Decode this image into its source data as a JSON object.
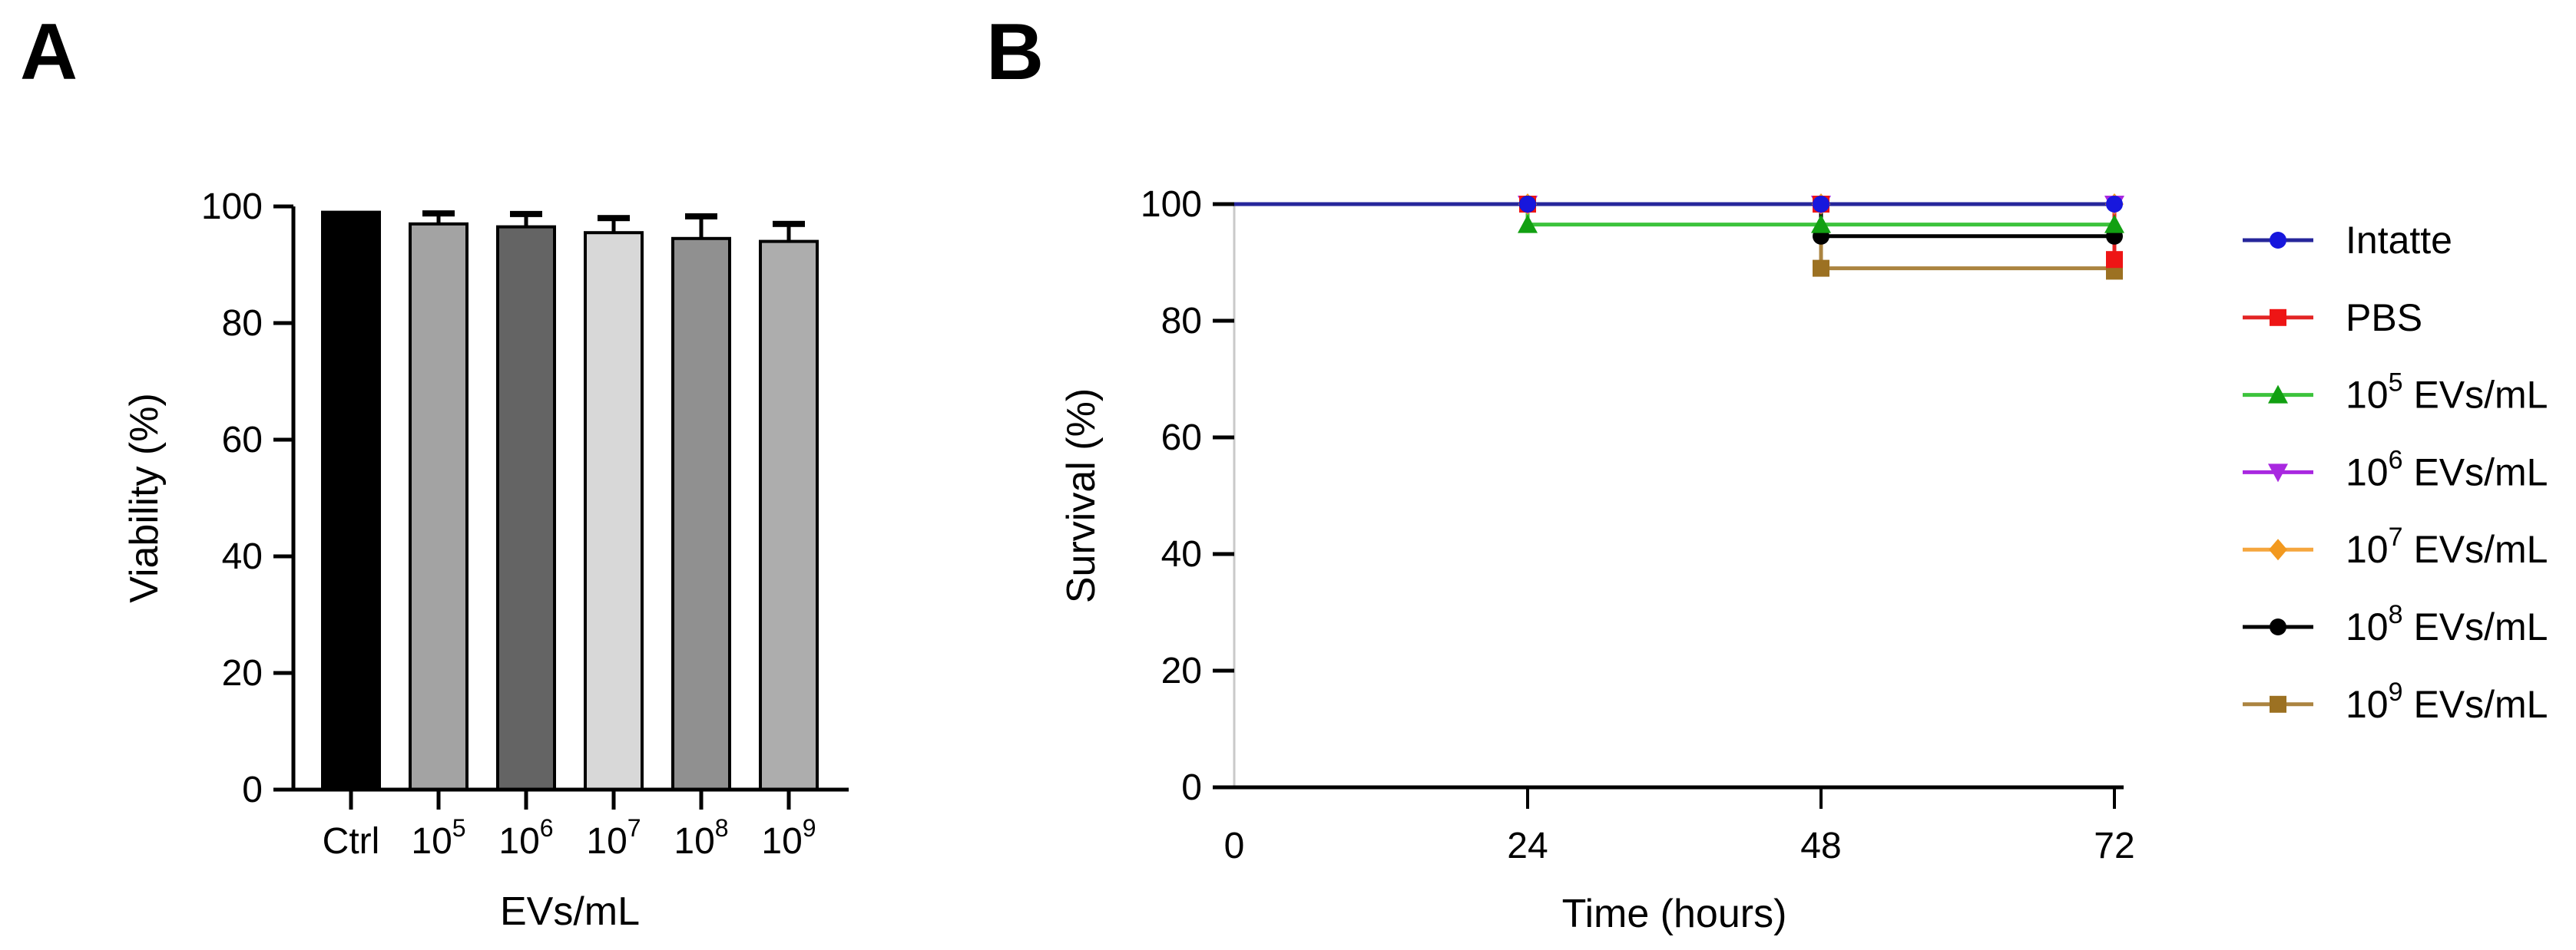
{
  "figure": {
    "panel_a_letter": "A",
    "panel_b_letter": "B"
  },
  "chart_data": [
    {
      "panel": "A",
      "type": "bar",
      "title": "",
      "ylabel": "Viability (%)",
      "xlabel": "EVs/mL",
      "ylim": [
        0,
        100
      ],
      "yticks": [
        0,
        20,
        40,
        60,
        80,
        100
      ],
      "grid": false,
      "categories": [
        "Ctrl",
        "10^5",
        "10^6",
        "10^7",
        "10^8",
        "10^9"
      ],
      "category_labels": [
        [
          {
            "t": "Ctrl"
          }
        ],
        [
          {
            "t": "10"
          },
          {
            "t": "5",
            "sup": true
          }
        ],
        [
          {
            "t": "10"
          },
          {
            "t": "6",
            "sup": true
          }
        ],
        [
          {
            "t": "10"
          },
          {
            "t": "7",
            "sup": true
          }
        ],
        [
          {
            "t": "10"
          },
          {
            "t": "8",
            "sup": true
          }
        ],
        [
          {
            "t": "10"
          },
          {
            "t": "9",
            "sup": true
          }
        ]
      ],
      "values": [
        99,
        97,
        96.5,
        95.5,
        94.5,
        94
      ],
      "errors_plus": [
        0,
        1.8,
        2.2,
        2.5,
        3.8,
        3
      ],
      "bar_colors": [
        "#000000",
        "#a3a3a3",
        "#646464",
        "#d8d8d8",
        "#909090",
        "#adadad"
      ],
      "bar_outline_color": "#000000",
      "error_bar_color": "#000000"
    },
    {
      "panel": "B",
      "type": "line",
      "subtype": "survival-step",
      "title": "",
      "ylabel": "Survival (%)",
      "xlabel": "Time (hours)",
      "ylim": [
        0,
        100
      ],
      "xlim": [
        0,
        72
      ],
      "yticks": [
        0,
        20,
        40,
        60,
        80,
        100
      ],
      "xticks": [
        0,
        24,
        48,
        72
      ],
      "grid": false,
      "legend_position": "right",
      "series": [
        {
          "name": "Intatte",
          "label_segments": [
            {
              "t": "Intatte"
            }
          ],
          "marker": "circle",
          "marker_color": "#1717dd",
          "line_color": "#26269b",
          "x": [
            0,
            24,
            48,
            72
          ],
          "y": [
            100,
            100,
            100,
            100
          ]
        },
        {
          "name": "PBS",
          "label_segments": [
            {
              "t": "PBS"
            }
          ],
          "marker": "square",
          "marker_color": "#ee1515",
          "line_color": "#e32424",
          "x": [
            0,
            24,
            48,
            72
          ],
          "y": [
            100,
            100,
            100,
            90.5
          ]
        },
        {
          "name": "10^5 EVs/mL",
          "label_segments": [
            {
              "t": "10"
            },
            {
              "t": "5",
              "sup": true
            },
            {
              "t": " EVs/mL"
            }
          ],
          "marker": "triangle-up",
          "marker_color": "#12a012",
          "line_color": "#3cc33c",
          "x": [
            0,
            24,
            48,
            72
          ],
          "y": [
            100,
            96.5,
            96.5,
            96.5
          ]
        },
        {
          "name": "10^6 EVs/mL",
          "label_segments": [
            {
              "t": "10"
            },
            {
              "t": "6",
              "sup": true
            },
            {
              "t": " EVs/mL"
            }
          ],
          "marker": "triangle-down",
          "marker_color": "#a928e0",
          "line_color": "#a928e0",
          "x": [
            0,
            24,
            48,
            72
          ],
          "y": [
            100,
            100,
            100,
            100
          ]
        },
        {
          "name": "10^7 EVs/mL",
          "label_segments": [
            {
              "t": "10"
            },
            {
              "t": "7",
              "sup": true
            },
            {
              "t": " EVs/mL"
            }
          ],
          "marker": "diamond",
          "marker_color": "#f2991f",
          "line_color": "#f5a63e",
          "x": [
            0,
            24,
            48,
            72
          ],
          "y": [
            100,
            100,
            100,
            100
          ]
        },
        {
          "name": "10^8 EVs/mL",
          "label_segments": [
            {
              "t": "10"
            },
            {
              "t": "8",
              "sup": true
            },
            {
              "t": " EVs/mL"
            }
          ],
          "marker": "circle",
          "marker_color": "#000000",
          "line_color": "#000000",
          "x": [
            0,
            24,
            48,
            72
          ],
          "y": [
            100,
            100,
            94.5,
            94.5
          ]
        },
        {
          "name": "10^9 EVs/mL",
          "label_segments": [
            {
              "t": "10"
            },
            {
              "t": "9",
              "sup": true
            },
            {
              "t": " EVs/mL"
            }
          ],
          "marker": "square",
          "marker_color": "#9c7122",
          "line_color": "#ab8440",
          "x": [
            0,
            24,
            48,
            72
          ],
          "y": [
            100,
            100,
            89,
            88.5
          ]
        }
      ]
    }
  ]
}
